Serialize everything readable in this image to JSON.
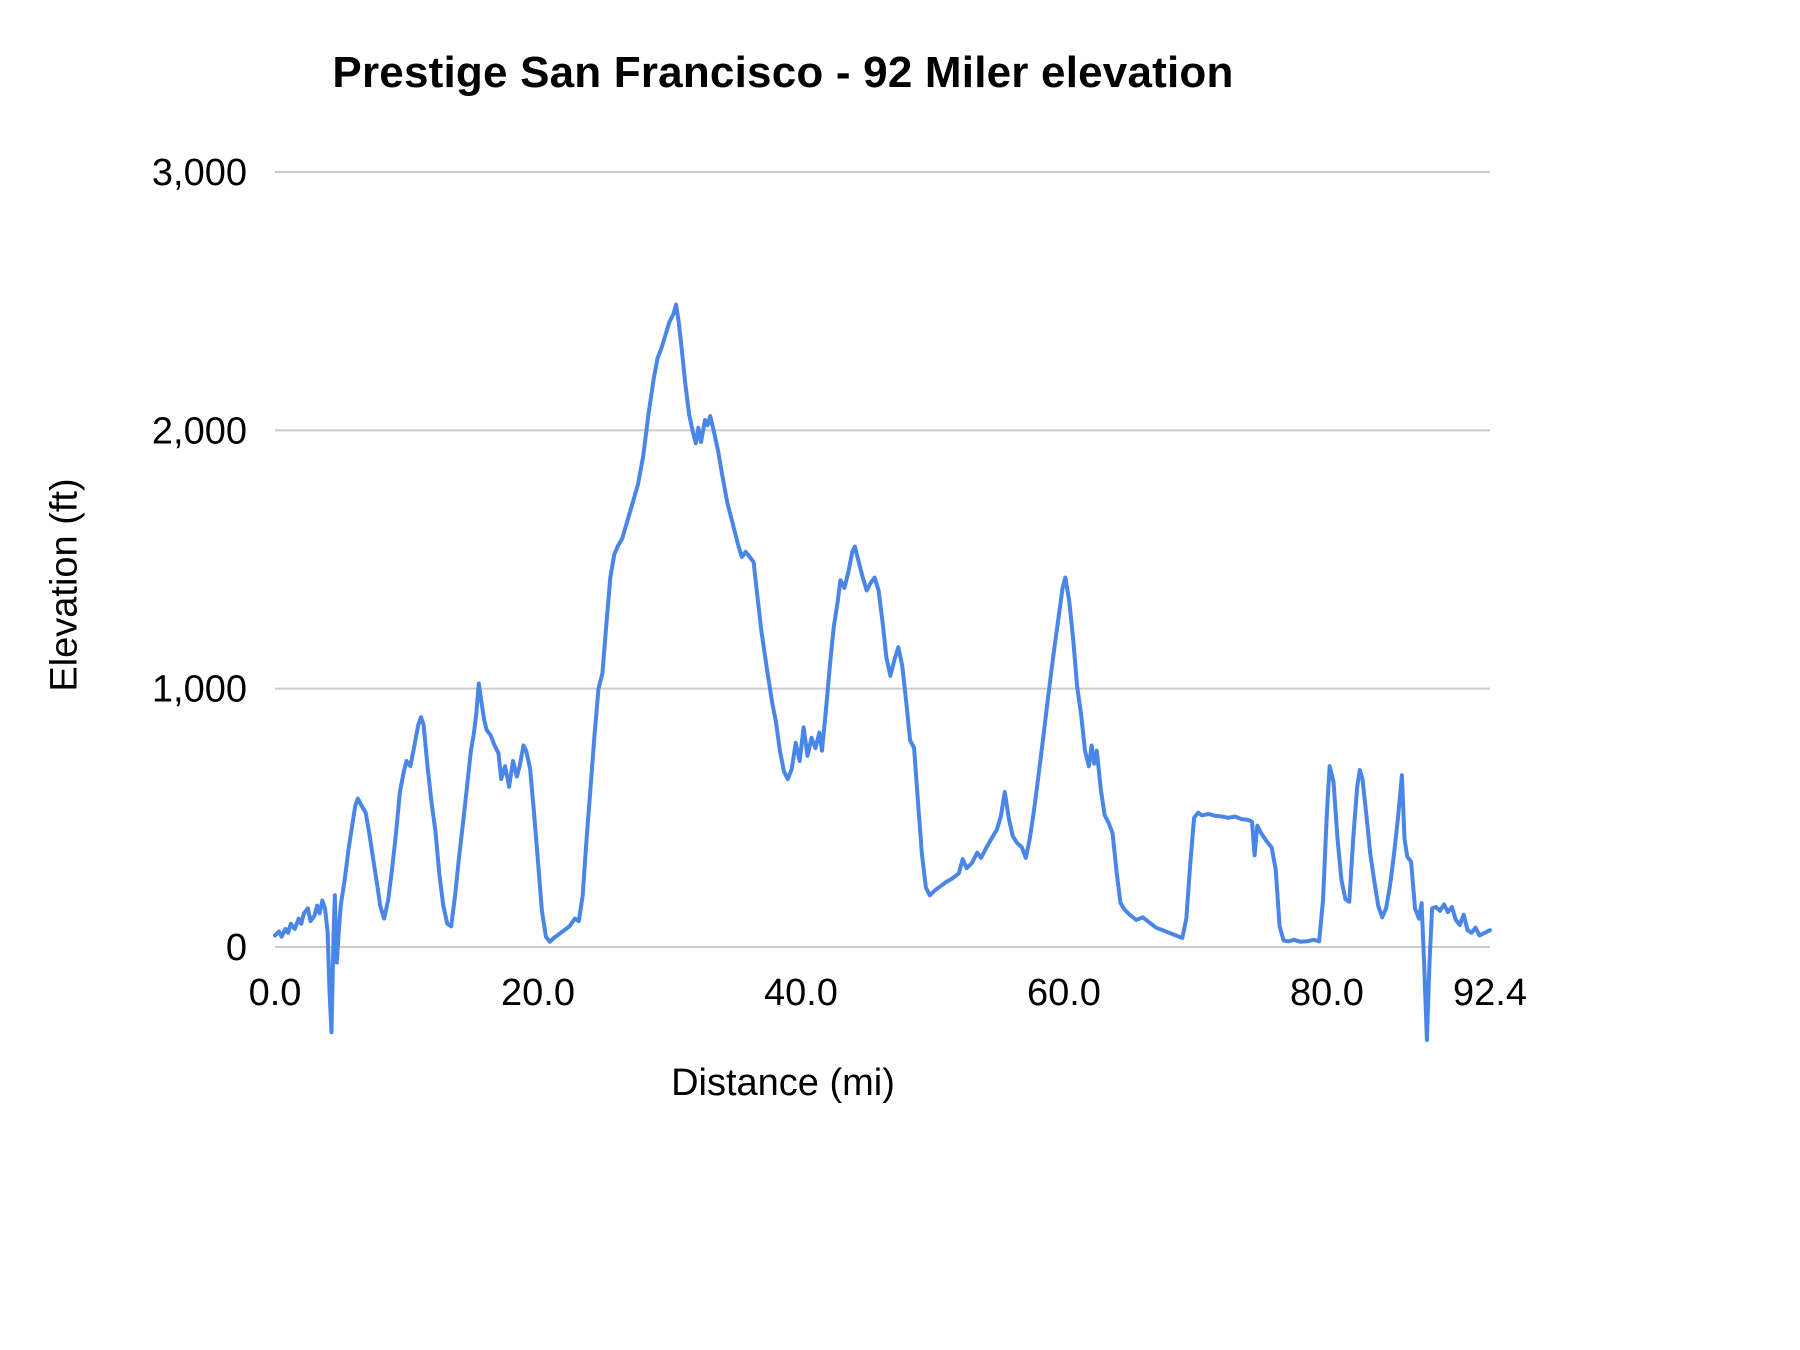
{
  "chart_data": {
    "type": "line",
    "title": "Prestige San Francisco - 92 Miler elevation",
    "xlabel": "Distance (mi)",
    "ylabel": "Elevation (ft)",
    "xlim": [
      0,
      92.4
    ],
    "ylim": [
      -400,
      3000
    ],
    "grid": "horizontal",
    "legend": "none",
    "line_color": "#4a86e8",
    "grid_color": "#cccccc",
    "x_ticks": [
      {
        "value": 0,
        "label": "0.0"
      },
      {
        "value": 20,
        "label": "20.0"
      },
      {
        "value": 40,
        "label": "40.0"
      },
      {
        "value": 60,
        "label": "60.0"
      },
      {
        "value": 80,
        "label": "80.0"
      },
      {
        "value": 92.4,
        "label": "92.4"
      }
    ],
    "y_ticks": [
      {
        "value": 0,
        "label": "0"
      },
      {
        "value": 1000,
        "label": "1,000"
      },
      {
        "value": 2000,
        "label": "2,000"
      },
      {
        "value": 3000,
        "label": "3,000"
      }
    ],
    "series": [
      {
        "name": "Elevation",
        "points": [
          [
            0,
            45
          ],
          [
            0.3,
            60
          ],
          [
            0.5,
            40
          ],
          [
            0.8,
            70
          ],
          [
            1.0,
            55
          ],
          [
            1.2,
            90
          ],
          [
            1.5,
            70
          ],
          [
            1.8,
            110
          ],
          [
            2.0,
            90
          ],
          [
            2.2,
            130
          ],
          [
            2.5,
            150
          ],
          [
            2.7,
            100
          ],
          [
            3.0,
            120
          ],
          [
            3.2,
            160
          ],
          [
            3.4,
            130
          ],
          [
            3.6,
            180
          ],
          [
            3.8,
            150
          ],
          [
            4.0,
            60
          ],
          [
            4.15,
            -180
          ],
          [
            4.3,
            -330
          ],
          [
            4.45,
            40
          ],
          [
            4.55,
            200
          ],
          [
            4.7,
            -60
          ],
          [
            4.85,
            60
          ],
          [
            5.0,
            160
          ],
          [
            5.3,
            260
          ],
          [
            5.6,
            380
          ],
          [
            5.9,
            480
          ],
          [
            6.1,
            545
          ],
          [
            6.3,
            575
          ],
          [
            6.6,
            545
          ],
          [
            6.9,
            520
          ],
          [
            7.2,
            430
          ],
          [
            7.5,
            330
          ],
          [
            7.8,
            230
          ],
          [
            8.0,
            160
          ],
          [
            8.3,
            110
          ],
          [
            8.6,
            180
          ],
          [
            8.9,
            300
          ],
          [
            9.2,
            440
          ],
          [
            9.5,
            600
          ],
          [
            9.8,
            680
          ],
          [
            10.0,
            720
          ],
          [
            10.3,
            700
          ],
          [
            10.6,
            780
          ],
          [
            10.9,
            860
          ],
          [
            11.1,
            890
          ],
          [
            11.3,
            860
          ],
          [
            11.6,
            700
          ],
          [
            11.9,
            560
          ],
          [
            12.2,
            450
          ],
          [
            12.5,
            280
          ],
          [
            12.8,
            160
          ],
          [
            13.1,
            90
          ],
          [
            13.4,
            80
          ],
          [
            13.7,
            200
          ],
          [
            14.0,
            350
          ],
          [
            14.3,
            480
          ],
          [
            14.6,
            620
          ],
          [
            14.9,
            760
          ],
          [
            15.1,
            820
          ],
          [
            15.3,
            900
          ],
          [
            15.5,
            1020
          ],
          [
            15.7,
            950
          ],
          [
            15.9,
            880
          ],
          [
            16.1,
            840
          ],
          [
            16.4,
            820
          ],
          [
            16.7,
            780
          ],
          [
            17.0,
            750
          ],
          [
            17.2,
            650
          ],
          [
            17.5,
            700
          ],
          [
            17.8,
            620
          ],
          [
            18.1,
            720
          ],
          [
            18.4,
            660
          ],
          [
            18.6,
            700
          ],
          [
            18.9,
            780
          ],
          [
            19.1,
            760
          ],
          [
            19.4,
            690
          ],
          [
            19.7,
            520
          ],
          [
            20.0,
            330
          ],
          [
            20.3,
            140
          ],
          [
            20.6,
            40
          ],
          [
            20.9,
            20
          ],
          [
            21.2,
            35
          ],
          [
            21.6,
            50
          ],
          [
            22.0,
            65
          ],
          [
            22.4,
            80
          ],
          [
            22.8,
            110
          ],
          [
            23.1,
            100
          ],
          [
            23.4,
            200
          ],
          [
            23.7,
            420
          ],
          [
            24.0,
            620
          ],
          [
            24.3,
            820
          ],
          [
            24.6,
            1000
          ],
          [
            24.9,
            1060
          ],
          [
            25.2,
            1250
          ],
          [
            25.5,
            1430
          ],
          [
            25.8,
            1520
          ],
          [
            26.1,
            1555
          ],
          [
            26.4,
            1580
          ],
          [
            26.8,
            1650
          ],
          [
            27.2,
            1720
          ],
          [
            27.6,
            1790
          ],
          [
            28.0,
            1900
          ],
          [
            28.4,
            2060
          ],
          [
            28.8,
            2200
          ],
          [
            29.1,
            2280
          ],
          [
            29.4,
            2320
          ],
          [
            29.7,
            2370
          ],
          [
            30.0,
            2420
          ],
          [
            30.3,
            2450
          ],
          [
            30.5,
            2487
          ],
          [
            30.7,
            2420
          ],
          [
            30.9,
            2330
          ],
          [
            31.2,
            2180
          ],
          [
            31.5,
            2060
          ],
          [
            31.8,
            1990
          ],
          [
            32.0,
            1950
          ],
          [
            32.2,
            2010
          ],
          [
            32.4,
            1955
          ],
          [
            32.7,
            2040
          ],
          [
            32.9,
            2020
          ],
          [
            33.1,
            2055
          ],
          [
            33.4,
            1990
          ],
          [
            33.7,
            1920
          ],
          [
            34.0,
            1830
          ],
          [
            34.4,
            1720
          ],
          [
            34.8,
            1640
          ],
          [
            35.2,
            1560
          ],
          [
            35.5,
            1510
          ],
          [
            35.8,
            1530
          ],
          [
            36.1,
            1510
          ],
          [
            36.4,
            1490
          ],
          [
            36.7,
            1350
          ],
          [
            37.0,
            1220
          ],
          [
            37.4,
            1080
          ],
          [
            37.8,
            950
          ],
          [
            38.1,
            870
          ],
          [
            38.4,
            760
          ],
          [
            38.7,
            680
          ],
          [
            39.0,
            650
          ],
          [
            39.3,
            690
          ],
          [
            39.6,
            790
          ],
          [
            39.9,
            720
          ],
          [
            40.2,
            850
          ],
          [
            40.5,
            740
          ],
          [
            40.8,
            810
          ],
          [
            41.1,
            770
          ],
          [
            41.4,
            830
          ],
          [
            41.6,
            760
          ],
          [
            41.9,
            920
          ],
          [
            42.2,
            1090
          ],
          [
            42.5,
            1240
          ],
          [
            42.8,
            1340
          ],
          [
            43.0,
            1420
          ],
          [
            43.3,
            1390
          ],
          [
            43.6,
            1450
          ],
          [
            43.9,
            1530
          ],
          [
            44.1,
            1550
          ],
          [
            44.4,
            1490
          ],
          [
            44.7,
            1430
          ],
          [
            45.0,
            1380
          ],
          [
            45.3,
            1410
          ],
          [
            45.6,
            1430
          ],
          [
            45.9,
            1380
          ],
          [
            46.2,
            1260
          ],
          [
            46.5,
            1120
          ],
          [
            46.8,
            1050
          ],
          [
            47.1,
            1110
          ],
          [
            47.4,
            1160
          ],
          [
            47.7,
            1090
          ],
          [
            48.0,
            950
          ],
          [
            48.3,
            800
          ],
          [
            48.6,
            770
          ],
          [
            48.9,
            560
          ],
          [
            49.2,
            360
          ],
          [
            49.5,
            230
          ],
          [
            49.8,
            200
          ],
          [
            50.2,
            220
          ],
          [
            50.6,
            235
          ],
          [
            51.0,
            250
          ],
          [
            51.5,
            265
          ],
          [
            52.0,
            285
          ],
          [
            52.3,
            340
          ],
          [
            52.6,
            305
          ],
          [
            53.0,
            325
          ],
          [
            53.4,
            365
          ],
          [
            53.7,
            345
          ],
          [
            54.1,
            385
          ],
          [
            54.5,
            420
          ],
          [
            54.9,
            455
          ],
          [
            55.2,
            505
          ],
          [
            55.5,
            600
          ],
          [
            55.8,
            500
          ],
          [
            56.1,
            430
          ],
          [
            56.4,
            405
          ],
          [
            56.8,
            385
          ],
          [
            57.1,
            345
          ],
          [
            57.4,
            420
          ],
          [
            57.7,
            520
          ],
          [
            58.0,
            640
          ],
          [
            58.4,
            800
          ],
          [
            58.8,
            970
          ],
          [
            59.2,
            1130
          ],
          [
            59.6,
            1280
          ],
          [
            59.9,
            1390
          ],
          [
            60.1,
            1430
          ],
          [
            60.4,
            1340
          ],
          [
            60.7,
            1190
          ],
          [
            61.0,
            1010
          ],
          [
            61.3,
            900
          ],
          [
            61.6,
            760
          ],
          [
            61.9,
            700
          ],
          [
            62.1,
            780
          ],
          [
            62.3,
            710
          ],
          [
            62.5,
            760
          ],
          [
            62.8,
            610
          ],
          [
            63.1,
            510
          ],
          [
            63.4,
            480
          ],
          [
            63.7,
            440
          ],
          [
            64.0,
            290
          ],
          [
            64.3,
            170
          ],
          [
            64.6,
            145
          ],
          [
            65.0,
            125
          ],
          [
            65.5,
            105
          ],
          [
            66.0,
            115
          ],
          [
            66.5,
            95
          ],
          [
            67.0,
            75
          ],
          [
            67.5,
            65
          ],
          [
            68.0,
            55
          ],
          [
            68.5,
            45
          ],
          [
            69.0,
            35
          ],
          [
            69.3,
            110
          ],
          [
            69.6,
            320
          ],
          [
            69.9,
            500
          ],
          [
            70.2,
            520
          ],
          [
            70.5,
            510
          ],
          [
            71.0,
            515
          ],
          [
            71.5,
            508
          ],
          [
            72.0,
            505
          ],
          [
            72.5,
            500
          ],
          [
            73.0,
            505
          ],
          [
            73.5,
            495
          ],
          [
            74.0,
            492
          ],
          [
            74.3,
            485
          ],
          [
            74.5,
            355
          ],
          [
            74.7,
            470
          ],
          [
            75.0,
            440
          ],
          [
            75.4,
            410
          ],
          [
            75.8,
            385
          ],
          [
            76.1,
            300
          ],
          [
            76.4,
            80
          ],
          [
            76.7,
            25
          ],
          [
            77.1,
            22
          ],
          [
            77.5,
            28
          ],
          [
            78.0,
            20
          ],
          [
            78.5,
            22
          ],
          [
            79.0,
            28
          ],
          [
            79.4,
            22
          ],
          [
            79.7,
            180
          ],
          [
            80.0,
            520
          ],
          [
            80.2,
            700
          ],
          [
            80.5,
            640
          ],
          [
            80.8,
            420
          ],
          [
            81.1,
            260
          ],
          [
            81.4,
            185
          ],
          [
            81.7,
            175
          ],
          [
            82.0,
            420
          ],
          [
            82.3,
            620
          ],
          [
            82.5,
            685
          ],
          [
            82.7,
            650
          ],
          [
            83.0,
            510
          ],
          [
            83.3,
            360
          ],
          [
            83.6,
            255
          ],
          [
            83.9,
            160
          ],
          [
            84.2,
            115
          ],
          [
            84.5,
            150
          ],
          [
            84.8,
            240
          ],
          [
            85.1,
            360
          ],
          [
            85.4,
            500
          ],
          [
            85.7,
            665
          ],
          [
            85.9,
            420
          ],
          [
            86.1,
            350
          ],
          [
            86.4,
            330
          ],
          [
            86.7,
            150
          ],
          [
            87.0,
            110
          ],
          [
            87.2,
            170
          ],
          [
            87.4,
            -80
          ],
          [
            87.6,
            -360
          ],
          [
            87.8,
            -60
          ],
          [
            88.0,
            150
          ],
          [
            88.3,
            155
          ],
          [
            88.6,
            140
          ],
          [
            88.9,
            165
          ],
          [
            89.2,
            135
          ],
          [
            89.5,
            155
          ],
          [
            89.8,
            105
          ],
          [
            90.1,
            85
          ],
          [
            90.4,
            125
          ],
          [
            90.7,
            65
          ],
          [
            91.0,
            55
          ],
          [
            91.3,
            75
          ],
          [
            91.6,
            45
          ],
          [
            92.0,
            55
          ],
          [
            92.4,
            65
          ]
        ]
      }
    ]
  }
}
